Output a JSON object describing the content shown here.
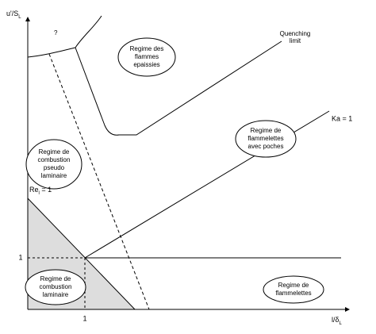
{
  "axes": {
    "y_label": "u'/S",
    "y_label_sub": "L",
    "x_label": "l/δ",
    "x_label_sub": "L",
    "x_tick": "1",
    "y_tick": "1"
  },
  "annotations": {
    "unknown": "?",
    "quenching": [
      "Quenching",
      "limit"
    ],
    "ka": "Ka = 1",
    "re": "Re",
    "re_sub": "l",
    "re_eq": " = 1"
  },
  "regions": [
    {
      "lines": [
        "Regime des",
        "flammes",
        "epaissies"
      ]
    },
    {
      "lines": [
        "Regime de",
        "combustion",
        "pseudo",
        "laminaire"
      ]
    },
    {
      "lines": [
        "Regime de",
        "flammelettes",
        "avec poches"
      ]
    },
    {
      "lines": [
        "Regime de",
        "combustion",
        "laminaire"
      ]
    },
    {
      "lines": [
        "Regime de",
        "flammelettes"
      ]
    }
  ]
}
